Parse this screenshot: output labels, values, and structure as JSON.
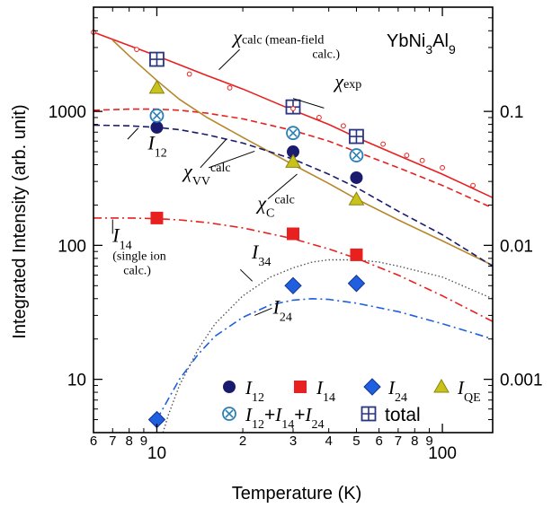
{
  "chart_data": {
    "type": "scatter",
    "title": "YbNi3Al9",
    "xlabel": "Temperature  (K)",
    "ylabel": "Integrated Intensity  (arb. unit)",
    "xscale": "log",
    "yscale": "log",
    "xlim": [
      6,
      150
    ],
    "ylim": [
      4,
      6000
    ],
    "y2scale": "log",
    "y2lim": [
      0.0004,
      0.6
    ],
    "x_tick_major_labels": [
      "10",
      "100"
    ],
    "x_tick_minor_labels": [
      "6",
      "7",
      "8",
      "9",
      "2",
      "3",
      "4",
      "5",
      "6",
      "7",
      "8",
      "9"
    ],
    "y_tick_labels": [
      "10",
      "100",
      "1000"
    ],
    "y2_tick_labels": [
      "0.001",
      "0.01",
      "0.1"
    ],
    "legend": {
      "placement": "lower-right",
      "entries": [
        {
          "series": "I12",
          "symbol": "circle",
          "color": "#1a1a6e",
          "parts": [
            {
              "t": "I",
              "sub": "12"
            }
          ]
        },
        {
          "series": "I14",
          "symbol": "square",
          "color": "#e8201f",
          "parts": [
            {
              "t": "I",
              "sub": "14"
            }
          ]
        },
        {
          "series": "I24",
          "symbol": "diamond",
          "color": "#1f5fe0",
          "parts": [
            {
              "t": "I",
              "sub": "24"
            }
          ]
        },
        {
          "series": "IQE",
          "symbol": "triangle",
          "color": "#c9c21a",
          "parts": [
            {
              "t": "I",
              "sub": "QE"
            }
          ]
        },
        {
          "series": "Isum",
          "symbol": "circle-x",
          "color": "#2a7fb5",
          "parts": [
            {
              "t": "I",
              "sub": "12"
            },
            {
              "t": "+",
              "plain": true
            },
            {
              "t": "I",
              "sub": "14"
            },
            {
              "t": "+",
              "plain": true
            },
            {
              "t": "I",
              "sub": "24"
            }
          ]
        },
        {
          "series": "total",
          "symbol": "square-plus",
          "color": "#2a3580",
          "parts": [
            {
              "t": "total",
              "plain": true
            }
          ]
        }
      ]
    },
    "series": [
      {
        "id": "I12",
        "marker": "circle",
        "color": "#1a1a6e",
        "x": [
          10,
          30,
          50
        ],
        "y": [
          760,
          500,
          320
        ]
      },
      {
        "id": "I14",
        "marker": "square",
        "color": "#e8201f",
        "x": [
          10,
          30,
          50
        ],
        "y": [
          160,
          122,
          85
        ]
      },
      {
        "id": "I24",
        "marker": "diamond",
        "color": "#1f5fe0",
        "x": [
          10,
          30,
          50
        ],
        "y": [
          5,
          50,
          52
        ]
      },
      {
        "id": "IQE",
        "marker": "triangle",
        "color": "#c9c21a",
        "x": [
          10,
          30,
          50
        ],
        "y": [
          1500,
          420,
          220
        ]
      },
      {
        "id": "Isum",
        "marker": "circle-x",
        "color": "#2a7fb5",
        "x": [
          10,
          30,
          50
        ],
        "y": [
          930,
          690,
          470
        ]
      },
      {
        "id": "total",
        "marker": "square-plus",
        "color": "#2a3580",
        "x": [
          10,
          30,
          50
        ],
        "y": [
          2450,
          1080,
          650
        ]
      },
      {
        "id": "chi_exp",
        "marker": "small-open-circle",
        "color": "#e8201f",
        "x": [
          6,
          8.5,
          13,
          18,
          30,
          37,
          45,
          62,
          75,
          85,
          100,
          128
        ],
        "y": [
          3900,
          2900,
          1900,
          1500,
          1050,
          900,
          780,
          570,
          470,
          430,
          380,
          280
        ]
      }
    ],
    "curves": [
      {
        "id": "chi_calc",
        "style": "solid",
        "color": "#e8201f",
        "axis": "y2",
        "x": [
          6,
          8,
          10,
          15,
          20,
          30,
          40,
          50,
          70,
          100,
          150
        ],
        "y": [
          0.39,
          0.31,
          0.26,
          0.185,
          0.147,
          0.102,
          0.08,
          0.064,
          0.047,
          0.034,
          0.0227
        ]
      },
      {
        "id": "chi_vv",
        "style": "dash",
        "color": "#e8201f",
        "x": [
          6,
          8,
          10,
          12,
          15,
          20,
          30,
          40,
          50,
          70,
          100,
          150
        ],
        "y": [
          1020,
          1040,
          1040,
          1020,
          970,
          880,
          720,
          600,
          500,
          380,
          280,
          190
        ]
      },
      {
        "id": "chi_c",
        "style": "solid",
        "color": "#b8862b",
        "x": [
          7,
          8,
          10,
          12,
          15,
          20,
          30,
          40,
          50,
          70,
          100,
          150
        ],
        "y": [
          3400,
          2600,
          1700,
          1230,
          900,
          640,
          400,
          290,
          222,
          155,
          108,
          71
        ]
      },
      {
        "id": "I12_calc",
        "style": "dash",
        "color": "#1a1a6e",
        "x": [
          6,
          8,
          10,
          12,
          15,
          20,
          30,
          40,
          50,
          70,
          100,
          150
        ],
        "y": [
          790,
          780,
          760,
          730,
          670,
          580,
          440,
          340,
          270,
          180,
          120,
          70
        ]
      },
      {
        "id": "I14_calc",
        "style": "dashdot",
        "color": "#e8201f",
        "x": [
          6,
          8,
          10,
          12,
          15,
          20,
          30,
          40,
          50,
          70,
          100,
          150
        ],
        "y": [
          160,
          160,
          158,
          155,
          148,
          135,
          112,
          94,
          80,
          60,
          42,
          27
        ]
      },
      {
        "id": "I24_calc",
        "style": "dashdot",
        "color": "#1f5fe0",
        "x": [
          10,
          11,
          12,
          14,
          16,
          20,
          25,
          30,
          35,
          40,
          50,
          70,
          100,
          150
        ],
        "y": [
          5,
          7.2,
          10,
          15.5,
          21,
          29,
          36,
          39,
          40,
          39.5,
          37,
          32,
          26,
          20
        ]
      },
      {
        "id": "I34_calc",
        "style": "dot",
        "color": "#555555",
        "x": [
          10.5,
          11,
          12,
          14,
          16,
          20,
          25,
          30,
          35,
          40,
          50,
          60,
          70,
          100,
          150
        ],
        "y": [
          4,
          5.5,
          9,
          17,
          26,
          42,
          58,
          68,
          75,
          78,
          78,
          75,
          70,
          58,
          40
        ]
      }
    ],
    "annotations": [
      {
        "id": "chi-calc",
        "parts": [
          {
            "t": "χ",
            "italic": true
          },
          {
            "t": "calc",
            "small": true
          },
          {
            "t": " (mean-field",
            "small": true
          }
        ],
        "line2": "calc.)",
        "x": 18.5,
        "y": 3200
      },
      {
        "id": "chi-exp",
        "parts": [
          {
            "t": "χ",
            "italic": true
          },
          {
            "t": "exp",
            "small": true
          }
        ],
        "x": 42,
        "y": 1500
      },
      {
        "id": "chi-vv",
        "parts": [
          {
            "t": "χ",
            "italic": true
          },
          {
            "t": "VV",
            "sub": true
          },
          {
            "t": "calc",
            "sup": true
          }
        ],
        "x": 12.4,
        "y": 320
      },
      {
        "id": "chi-c",
        "parts": [
          {
            "t": "χ",
            "italic": true
          },
          {
            "t": "C",
            "sub": true
          },
          {
            "t": "calc",
            "sup": true
          }
        ],
        "x": 22.5,
        "y": 185
      },
      {
        "id": "I12",
        "parts": [
          {
            "t": "I",
            "italic": true
          },
          {
            "t": "12",
            "sub": true
          }
        ],
        "x": 9.3,
        "y": 520
      },
      {
        "id": "I14",
        "parts": [
          {
            "t": "I",
            "italic": true
          },
          {
            "t": "14",
            "sub": true
          }
        ],
        "x": 7.0,
        "y": 106
      },
      {
        "id": "I14-note",
        "parts": [
          {
            "t": "(single ion",
            "small": true
          }
        ],
        "line2": "calc.)",
        "x": 7.0,
        "y": 78
      },
      {
        "id": "I34",
        "parts": [
          {
            "t": "I",
            "italic": true
          },
          {
            "t": "34",
            "sub": true
          }
        ],
        "x": 21.5,
        "y": 80
      },
      {
        "id": "I24",
        "parts": [
          {
            "t": "I",
            "italic": true
          },
          {
            "t": "24",
            "sub": true
          }
        ],
        "x": 25.5,
        "y": 31
      }
    ]
  }
}
